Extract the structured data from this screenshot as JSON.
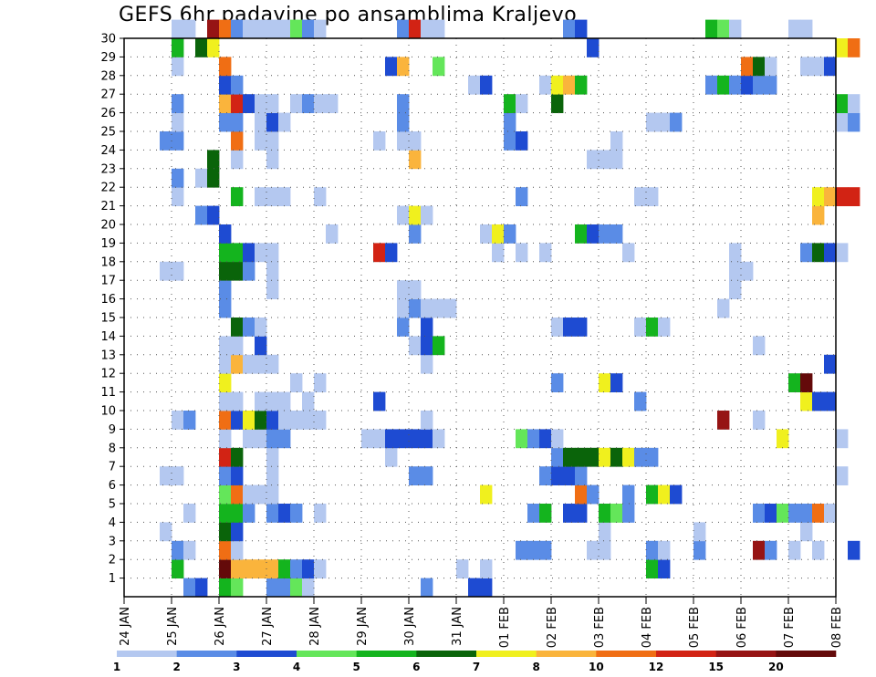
{
  "chart_data": {
    "type": "heatmap",
    "title": "GEFS 6hr padavine po ansamblima Kraljevo",
    "x_tick_labels": [
      "24 JAN",
      "25 JAN",
      "26 JAN",
      "27 JAN",
      "28 JAN",
      "29 JAN",
      "30 JAN",
      "31 JAN",
      "01 FEB",
      "02 FEB",
      "03 FEB",
      "04 FEB",
      "05 FEB",
      "06 FEB",
      "07 FEB",
      "08 FEB"
    ],
    "x_range": [
      "24 JAN 00",
      "08 FEB 00"
    ],
    "x_step": "6hr",
    "y_tick_labels": [
      "1",
      "2",
      "3",
      "4",
      "5",
      "6",
      "7",
      "8",
      "9",
      "10",
      "11",
      "12",
      "13",
      "14",
      "15",
      "16",
      "17",
      "18",
      "19",
      "20",
      "21",
      "22",
      "23",
      "24",
      "25",
      "26",
      "27",
      "28",
      "29",
      "30"
    ],
    "y_range": [
      0,
      30
    ],
    "grid": true,
    "legend": {
      "placement": "bottom",
      "labels": [
        "1",
        "2",
        "3",
        "4",
        "5",
        "6",
        "7",
        "8",
        "10",
        "12",
        "15",
        "20"
      ],
      "colors": [
        "#b4c8f0",
        "#5a8ce6",
        "#1e4bd2",
        "#64e65a",
        "#14b41e",
        "#0a640a",
        "#f0f01e",
        "#fab43c",
        "#f06e14",
        "#d22314",
        "#961414",
        "#640a0a"
      ]
    },
    "cells": [
      [
        0,
        5,
        1
      ],
      [
        0,
        6,
        2
      ],
      [
        0,
        8,
        4
      ],
      [
        0,
        9,
        3
      ],
      [
        0,
        12,
        1
      ],
      [
        0,
        13,
        1
      ],
      [
        0,
        14,
        3
      ],
      [
        0,
        15,
        0
      ],
      [
        0,
        25,
        1
      ],
      [
        0,
        29,
        2
      ],
      [
        0,
        30,
        2
      ],
      [
        1,
        4,
        4
      ],
      [
        1,
        8,
        11
      ],
      [
        1,
        9,
        7
      ],
      [
        1,
        10,
        7
      ],
      [
        1,
        11,
        7
      ],
      [
        1,
        12,
        7
      ],
      [
        1,
        13,
        4
      ],
      [
        1,
        14,
        1
      ],
      [
        1,
        15,
        2
      ],
      [
        1,
        16,
        0
      ],
      [
        1,
        28,
        0
      ],
      [
        1,
        30,
        0
      ],
      [
        1,
        44,
        4
      ],
      [
        1,
        45,
        2
      ],
      [
        2,
        4,
        1
      ],
      [
        2,
        5,
        0
      ],
      [
        2,
        8,
        8
      ],
      [
        2,
        9,
        0
      ],
      [
        2,
        33,
        1
      ],
      [
        2,
        34,
        1
      ],
      [
        2,
        35,
        1
      ],
      [
        2,
        39,
        0
      ],
      [
        2,
        40,
        0
      ],
      [
        2,
        44,
        1
      ],
      [
        2,
        45,
        0
      ],
      [
        2,
        48,
        1
      ],
      [
        2,
        53,
        10
      ],
      [
        2,
        54,
        1
      ],
      [
        2,
        56,
        0
      ],
      [
        2,
        58,
        0
      ],
      [
        2,
        61,
        2
      ],
      [
        3,
        3,
        0
      ],
      [
        3,
        8,
        5
      ],
      [
        3,
        9,
        2
      ],
      [
        3,
        40,
        0
      ],
      [
        3,
        48,
        0
      ],
      [
        3,
        57,
        0
      ],
      [
        4,
        5,
        0
      ],
      [
        4,
        8,
        4
      ],
      [
        4,
        9,
        4
      ],
      [
        4,
        10,
        1
      ],
      [
        4,
        12,
        1
      ],
      [
        4,
        13,
        2
      ],
      [
        4,
        14,
        1
      ],
      [
        4,
        16,
        0
      ],
      [
        4,
        34,
        1
      ],
      [
        4,
        35,
        4
      ],
      [
        4,
        37,
        2
      ],
      [
        4,
        38,
        2
      ],
      [
        4,
        40,
        4
      ],
      [
        4,
        41,
        3
      ],
      [
        4,
        42,
        1
      ],
      [
        4,
        53,
        1
      ],
      [
        4,
        54,
        2
      ],
      [
        4,
        55,
        3
      ],
      [
        4,
        56,
        1
      ],
      [
        4,
        57,
        1
      ],
      [
        4,
        58,
        8
      ],
      [
        4,
        59,
        0
      ],
      [
        5,
        8,
        3
      ],
      [
        5,
        9,
        8
      ],
      [
        5,
        10,
        0
      ],
      [
        5,
        11,
        0
      ],
      [
        5,
        12,
        0
      ],
      [
        5,
        30,
        6
      ],
      [
        5,
        38,
        8
      ],
      [
        5,
        39,
        1
      ],
      [
        5,
        42,
        1
      ],
      [
        5,
        44,
        4
      ],
      [
        5,
        45,
        6
      ],
      [
        5,
        46,
        2
      ],
      [
        6,
        3,
        0
      ],
      [
        6,
        4,
        0
      ],
      [
        6,
        8,
        1
      ],
      [
        6,
        9,
        2
      ],
      [
        6,
        12,
        0
      ],
      [
        6,
        24,
        1
      ],
      [
        6,
        25,
        1
      ],
      [
        6,
        35,
        1
      ],
      [
        6,
        36,
        2
      ],
      [
        6,
        37,
        2
      ],
      [
        6,
        38,
        1
      ],
      [
        6,
        60,
        0
      ],
      [
        7,
        8,
        9
      ],
      [
        7,
        9,
        5
      ],
      [
        7,
        12,
        0
      ],
      [
        7,
        22,
        0
      ],
      [
        7,
        36,
        1
      ],
      [
        7,
        37,
        5
      ],
      [
        7,
        38,
        5
      ],
      [
        7,
        39,
        5
      ],
      [
        7,
        40,
        6
      ],
      [
        7,
        41,
        5
      ],
      [
        7,
        42,
        6
      ],
      [
        7,
        43,
        1
      ],
      [
        7,
        44,
        1
      ],
      [
        8,
        8,
        0
      ],
      [
        8,
        10,
        0
      ],
      [
        8,
        11,
        0
      ],
      [
        8,
        12,
        1
      ],
      [
        8,
        13,
        1
      ],
      [
        8,
        20,
        0
      ],
      [
        8,
        21,
        0
      ],
      [
        8,
        22,
        2
      ],
      [
        8,
        23,
        2
      ],
      [
        8,
        24,
        2
      ],
      [
        8,
        25,
        2
      ],
      [
        8,
        26,
        0
      ],
      [
        8,
        33,
        3
      ],
      [
        8,
        34,
        1
      ],
      [
        8,
        35,
        2
      ],
      [
        8,
        36,
        0
      ],
      [
        8,
        55,
        6
      ],
      [
        8,
        60,
        0
      ],
      [
        9,
        4,
        0
      ],
      [
        9,
        5,
        1
      ],
      [
        9,
        8,
        8
      ],
      [
        9,
        9,
        2
      ],
      [
        9,
        10,
        6
      ],
      [
        9,
        11,
        5
      ],
      [
        9,
        12,
        2
      ],
      [
        9,
        13,
        0
      ],
      [
        9,
        14,
        0
      ],
      [
        9,
        15,
        0
      ],
      [
        9,
        16,
        0
      ],
      [
        9,
        25,
        0
      ],
      [
        9,
        50,
        10
      ],
      [
        9,
        53,
        0
      ],
      [
        10,
        8,
        0
      ],
      [
        10,
        9,
        0
      ],
      [
        10,
        11,
        0
      ],
      [
        10,
        12,
        0
      ],
      [
        10,
        13,
        0
      ],
      [
        10,
        15,
        0
      ],
      [
        10,
        21,
        2
      ],
      [
        10,
        43,
        1
      ],
      [
        10,
        57,
        6
      ],
      [
        10,
        58,
        2
      ],
      [
        10,
        59,
        2
      ],
      [
        11,
        8,
        6
      ],
      [
        11,
        14,
        0
      ],
      [
        11,
        16,
        0
      ],
      [
        11,
        36,
        1
      ],
      [
        11,
        40,
        6
      ],
      [
        11,
        41,
        2
      ],
      [
        11,
        56,
        4
      ],
      [
        11,
        57,
        11
      ],
      [
        12,
        8,
        0
      ],
      [
        12,
        9,
        7
      ],
      [
        12,
        10,
        0
      ],
      [
        12,
        11,
        0
      ],
      [
        12,
        12,
        0
      ],
      [
        12,
        25,
        0
      ],
      [
        12,
        59,
        2
      ],
      [
        13,
        8,
        0
      ],
      [
        13,
        9,
        0
      ],
      [
        13,
        11,
        2
      ],
      [
        13,
        24,
        0
      ],
      [
        13,
        25,
        2
      ],
      [
        13,
        26,
        4
      ],
      [
        13,
        53,
        0
      ],
      [
        14,
        9,
        5
      ],
      [
        14,
        10,
        1
      ],
      [
        14,
        11,
        0
      ],
      [
        14,
        23,
        1
      ],
      [
        14,
        25,
        2
      ],
      [
        14,
        36,
        0
      ],
      [
        14,
        37,
        2
      ],
      [
        14,
        38,
        2
      ],
      [
        14,
        43,
        0
      ],
      [
        14,
        44,
        4
      ],
      [
        14,
        45,
        0
      ],
      [
        15,
        8,
        1
      ],
      [
        15,
        23,
        0
      ],
      [
        15,
        24,
        1
      ],
      [
        15,
        25,
        0
      ],
      [
        15,
        26,
        0
      ],
      [
        15,
        27,
        0
      ],
      [
        15,
        50,
        0
      ],
      [
        16,
        8,
        1
      ],
      [
        16,
        12,
        0
      ],
      [
        16,
        23,
        0
      ],
      [
        16,
        24,
        0
      ],
      [
        16,
        51,
        0
      ],
      [
        17,
        3,
        0
      ],
      [
        17,
        4,
        0
      ],
      [
        17,
        8,
        5
      ],
      [
        17,
        9,
        5
      ],
      [
        17,
        10,
        1
      ],
      [
        17,
        12,
        0
      ],
      [
        17,
        51,
        0
      ],
      [
        17,
        52,
        0
      ],
      [
        18,
        8,
        4
      ],
      [
        18,
        9,
        4
      ],
      [
        18,
        10,
        2
      ],
      [
        18,
        11,
        0
      ],
      [
        18,
        12,
        0
      ],
      [
        18,
        21,
        9
      ],
      [
        18,
        22,
        2
      ],
      [
        18,
        31,
        0
      ],
      [
        18,
        33,
        0
      ],
      [
        18,
        35,
        0
      ],
      [
        18,
        42,
        0
      ],
      [
        18,
        51,
        0
      ],
      [
        18,
        57,
        1
      ],
      [
        18,
        58,
        5
      ],
      [
        18,
        59,
        2
      ],
      [
        18,
        60,
        0
      ],
      [
        19,
        8,
        2
      ],
      [
        19,
        17,
        0
      ],
      [
        19,
        24,
        1
      ],
      [
        19,
        30,
        0
      ],
      [
        19,
        31,
        6
      ],
      [
        19,
        32,
        1
      ],
      [
        19,
        38,
        4
      ],
      [
        19,
        39,
        2
      ],
      [
        19,
        40,
        1
      ],
      [
        19,
        41,
        1
      ],
      [
        20,
        6,
        1
      ],
      [
        20,
        7,
        2
      ],
      [
        20,
        23,
        0
      ],
      [
        20,
        24,
        6
      ],
      [
        20,
        25,
        0
      ],
      [
        20,
        58,
        7
      ],
      [
        21,
        4,
        0
      ],
      [
        21,
        9,
        4
      ],
      [
        21,
        11,
        0
      ],
      [
        21,
        12,
        0
      ],
      [
        21,
        13,
        0
      ],
      [
        21,
        16,
        0
      ],
      [
        21,
        33,
        1
      ],
      [
        21,
        43,
        0
      ],
      [
        21,
        44,
        0
      ],
      [
        21,
        58,
        6
      ],
      [
        21,
        59,
        7
      ],
      [
        21,
        60,
        9
      ],
      [
        21,
        61,
        9
      ],
      [
        22,
        4,
        1
      ],
      [
        22,
        6,
        0
      ],
      [
        22,
        7,
        5
      ],
      [
        23,
        7,
        5
      ],
      [
        23,
        9,
        0
      ],
      [
        23,
        12,
        0
      ],
      [
        23,
        24,
        7
      ],
      [
        23,
        39,
        0
      ],
      [
        23,
        40,
        0
      ],
      [
        23,
        41,
        0
      ],
      [
        24,
        3,
        1
      ],
      [
        24,
        4,
        1
      ],
      [
        24,
        9,
        8
      ],
      [
        24,
        11,
        0
      ],
      [
        24,
        12,
        0
      ],
      [
        24,
        21,
        0
      ],
      [
        24,
        23,
        0
      ],
      [
        24,
        24,
        0
      ],
      [
        24,
        32,
        1
      ],
      [
        24,
        33,
        2
      ],
      [
        24,
        41,
        0
      ],
      [
        25,
        4,
        0
      ],
      [
        25,
        8,
        1
      ],
      [
        25,
        9,
        1
      ],
      [
        25,
        11,
        0
      ],
      [
        25,
        12,
        2
      ],
      [
        25,
        13,
        0
      ],
      [
        25,
        23,
        1
      ],
      [
        25,
        32,
        1
      ],
      [
        25,
        44,
        0
      ],
      [
        25,
        45,
        0
      ],
      [
        25,
        46,
        1
      ],
      [
        25,
        60,
        0
      ],
      [
        25,
        61,
        1
      ],
      [
        26,
        4,
        1
      ],
      [
        26,
        8,
        7
      ],
      [
        26,
        9,
        9
      ],
      [
        26,
        10,
        2
      ],
      [
        26,
        11,
        0
      ],
      [
        26,
        12,
        0
      ],
      [
        26,
        14,
        0
      ],
      [
        26,
        15,
        1
      ],
      [
        26,
        16,
        0
      ],
      [
        26,
        17,
        0
      ],
      [
        26,
        23,
        1
      ],
      [
        26,
        32,
        4
      ],
      [
        26,
        33,
        0
      ],
      [
        26,
        36,
        5
      ],
      [
        26,
        60,
        4
      ],
      [
        26,
        61,
        0
      ],
      [
        27,
        8,
        2
      ],
      [
        27,
        9,
        1
      ],
      [
        27,
        29,
        0
      ],
      [
        27,
        30,
        2
      ],
      [
        27,
        35,
        0
      ],
      [
        27,
        36,
        6
      ],
      [
        27,
        37,
        7
      ],
      [
        27,
        38,
        4
      ],
      [
        27,
        49,
        1
      ],
      [
        27,
        50,
        4
      ],
      [
        27,
        51,
        1
      ],
      [
        27,
        52,
        2
      ],
      [
        27,
        53,
        1
      ],
      [
        27,
        54,
        1
      ],
      [
        28,
        4,
        0
      ],
      [
        28,
        8,
        8
      ],
      [
        28,
        22,
        2
      ],
      [
        28,
        23,
        7
      ],
      [
        28,
        26,
        3
      ],
      [
        28,
        52,
        8
      ],
      [
        28,
        53,
        5
      ],
      [
        28,
        54,
        0
      ],
      [
        28,
        57,
        0
      ],
      [
        28,
        58,
        0
      ],
      [
        28,
        59,
        2
      ],
      [
        29,
        4,
        4
      ],
      [
        29,
        6,
        5
      ],
      [
        29,
        7,
        6
      ],
      [
        29,
        39,
        2
      ],
      [
        29,
        60,
        6
      ],
      [
        29,
        61,
        8
      ],
      [
        30,
        4,
        0
      ],
      [
        30,
        5,
        0
      ],
      [
        30,
        7,
        10
      ],
      [
        30,
        8,
        8
      ],
      [
        30,
        9,
        1
      ],
      [
        30,
        10,
        0
      ],
      [
        30,
        11,
        0
      ],
      [
        30,
        12,
        0
      ],
      [
        30,
        13,
        0
      ],
      [
        30,
        14,
        3
      ],
      [
        30,
        15,
        1
      ],
      [
        30,
        16,
        0
      ],
      [
        30,
        23,
        1
      ],
      [
        30,
        24,
        9
      ],
      [
        30,
        25,
        0
      ],
      [
        30,
        26,
        0
      ],
      [
        30,
        37,
        1
      ],
      [
        30,
        38,
        2
      ],
      [
        30,
        49,
        4
      ],
      [
        30,
        50,
        3
      ],
      [
        30,
        51,
        0
      ],
      [
        30,
        56,
        0
      ],
      [
        30,
        57,
        0
      ]
    ]
  }
}
